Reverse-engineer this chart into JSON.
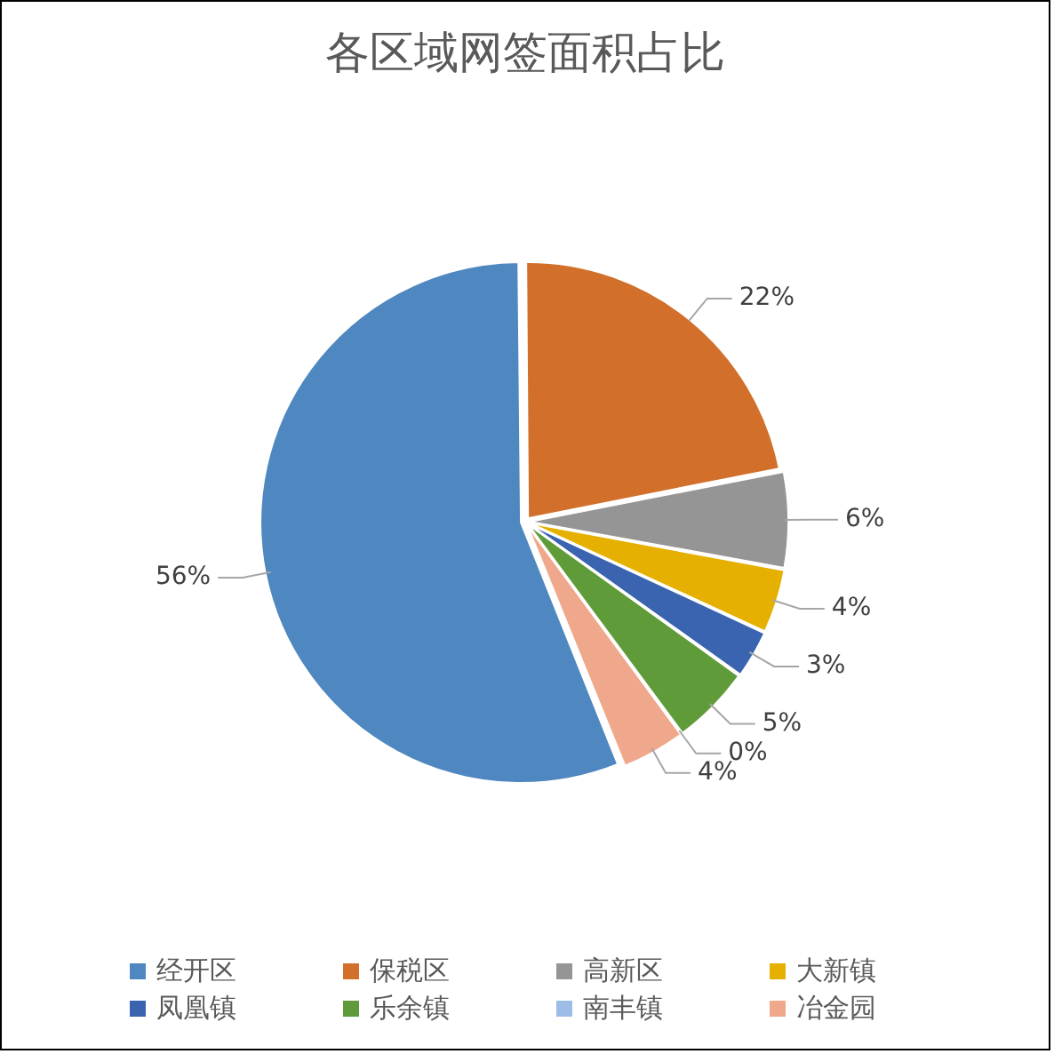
{
  "chart_data": {
    "type": "pie",
    "title": "各区域网签面积占比",
    "categories": [
      "经开区",
      "保税区",
      "高新区",
      "大新镇",
      "凤凰镇",
      "乐余镇",
      "南丰镇",
      "冶金园"
    ],
    "values": [
      56,
      22,
      6,
      4,
      3,
      5,
      0,
      4
    ],
    "colors": [
      "#4f87c0",
      "#d2702b",
      "#959595",
      "#e5b000",
      "#3a63b0",
      "#609b3a",
      "#9ebde6",
      "#f0a88c"
    ],
    "value_labels": [
      "56%",
      "22%",
      "6%",
      "4%",
      "3%",
      "5%",
      "0%",
      "4%"
    ],
    "legend": "bottom"
  }
}
